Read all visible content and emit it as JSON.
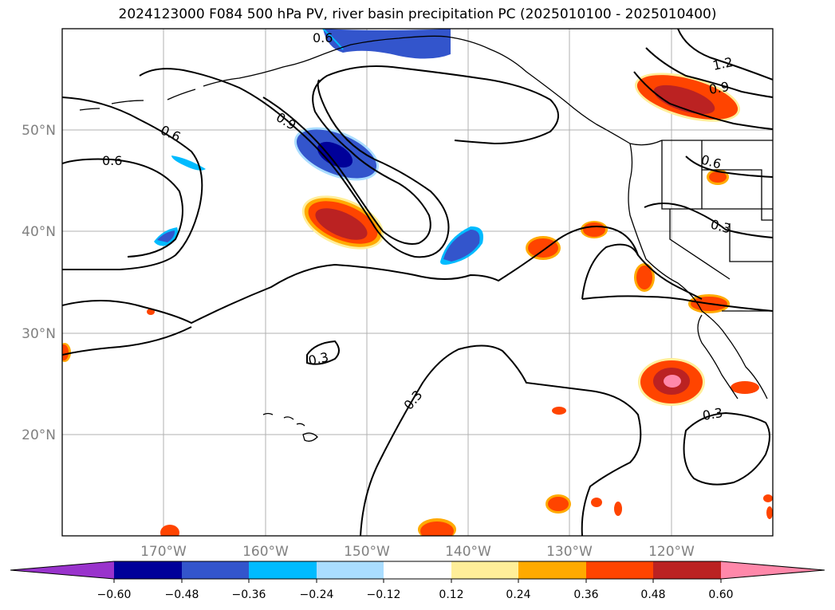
{
  "title": "2024123000 F084 500 hPa PV, river basin precipitation PC (2025010100 - 2025010400)",
  "map": {
    "latitude_labels": [
      "50°N",
      "40°N",
      "30°N",
      "20°N"
    ],
    "longitude_labels": [
      "170°W",
      "160°W",
      "150°W",
      "140°W",
      "130°W",
      "120°W"
    ],
    "contour_labels": [
      "0.6",
      "0.6",
      "0.9",
      "0.9",
      "1.2",
      "0.6",
      "0.3",
      "0.3",
      "0.3",
      "0.3",
      "0.6"
    ]
  },
  "colorbar": {
    "colors": [
      "#9933cc",
      "#000099",
      "#3355cc",
      "#00bbff",
      "#aaddff",
      "#ffffff",
      "#ffee99",
      "#ffaa00",
      "#ff4400",
      "#bb2222",
      "#ff88aa"
    ],
    "tick_labels": [
      "−0.60",
      "−0.48",
      "−0.36",
      "−0.24",
      "−0.12",
      "0.12",
      "0.24",
      "0.36",
      "0.48",
      "0.60"
    ]
  }
}
